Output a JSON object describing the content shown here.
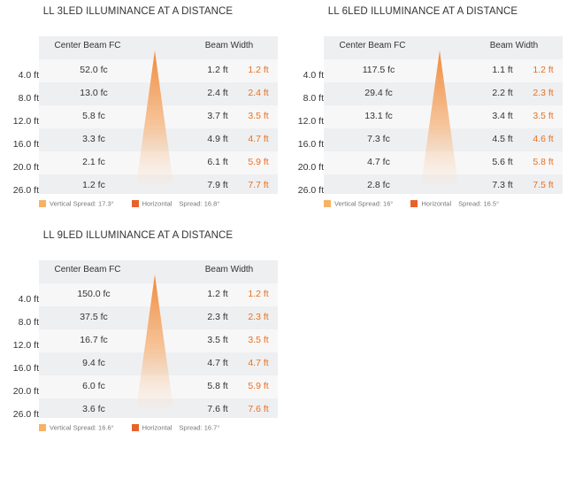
{
  "panels": [
    {
      "title": "LL 3LED ILLUMINANCE AT A DISTANCE",
      "center_beam_header": "Center Beam FC",
      "beam_width_header": "Beam Width",
      "distances": [
        "4.0 ft",
        "8.0 ft",
        "12.0 ft",
        "16.0 ft",
        "20.0 ft",
        "26.0 ft"
      ],
      "fc": [
        "52.0 fc",
        "13.0 fc",
        "5.8 fc",
        "3.3 fc",
        "2.1 fc",
        "1.2 fc"
      ],
      "vertical_width": [
        "1.2 ft",
        "2.4 ft",
        "3.7 ft",
        "4.9 ft",
        "6.1 ft",
        "7.9 ft"
      ],
      "horizontal_width": [
        "1.2 ft",
        "2.4 ft",
        "3.5 ft",
        "4.7 ft",
        "5.9 ft",
        "7.7 ft"
      ],
      "legend_vertical": "Vertical Spread: 17.3°",
      "legend_horizontal": "Horizontal",
      "legend_horizontal_spread": "Spread: 16.8°"
    },
    {
      "title": "LL 6LED ILLUMINANCE AT A DISTANCE",
      "center_beam_header": "Center Beam FC",
      "beam_width_header": "Beam Width",
      "distances": [
        "4.0 ft",
        "8.0 ft",
        "12.0 ft",
        "16.0 ft",
        "20.0 ft",
        "26.0 ft"
      ],
      "fc": [
        "117.5 fc",
        "29.4 fc",
        "13.1 fc",
        "7.3 fc",
        "4.7 fc",
        "2.8 fc"
      ],
      "vertical_width": [
        "1.1 ft",
        "2.2 ft",
        "3.4 ft",
        "4.5 ft",
        "5.6 ft",
        "7.3 ft"
      ],
      "horizontal_width": [
        "1.2 ft",
        "2.3 ft",
        "3.5 ft",
        "4.6 ft",
        "5.8 ft",
        "7.5 ft"
      ],
      "legend_vertical": "Vertical Spread: 16°",
      "legend_horizontal": "Horizontal",
      "legend_horizontal_spread": "Spread: 16.5°"
    },
    {
      "title": "LL 9LED ILLUMINANCE AT A DISTANCE",
      "center_beam_header": "Center Beam FC",
      "beam_width_header": "Beam Width",
      "distances": [
        "4.0 ft",
        "8.0 ft",
        "12.0 ft",
        "16.0 ft",
        "20.0 ft",
        "26.0 ft"
      ],
      "fc": [
        "150.0 fc",
        "37.5 fc",
        "16.7 fc",
        "9.4 fc",
        "6.0 fc",
        "3.6 fc"
      ],
      "vertical_width": [
        "1.2 ft",
        "2.3 ft",
        "3.5 ft",
        "4.7 ft",
        "5.8 ft",
        "7.6 ft"
      ],
      "horizontal_width": [
        "1.2 ft",
        "2.3 ft",
        "3.5 ft",
        "4.7 ft",
        "5.9 ft",
        "7.6 ft"
      ],
      "legend_vertical": "Vertical Spread: 16.6°",
      "legend_horizontal": "Horizontal",
      "legend_horizontal_spread": "Spread: 16.7°"
    }
  ],
  "colors": {
    "vertical_swatch": "#f6b365",
    "horizontal_swatch": "#e9612a",
    "horizontal_text": "#e9701e",
    "cone_top": "#f08a3a",
    "table_background": "#eeeff1"
  }
}
